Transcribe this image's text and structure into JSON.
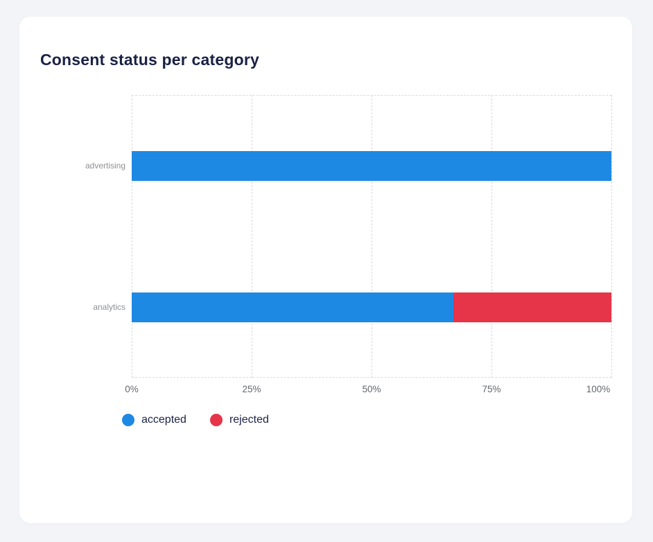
{
  "page": {
    "title": "Consent status per category"
  },
  "chart_data": {
    "type": "bar",
    "orientation": "horizontal",
    "stacked": true,
    "title": "Consent status per category",
    "categories": [
      "advertising",
      "analytics"
    ],
    "series": [
      {
        "name": "accepted",
        "color": "#1e89e3",
        "values": [
          100,
          67
        ]
      },
      {
        "name": "rejected",
        "color": "#e63449",
        "values": [
          0,
          33
        ]
      }
    ],
    "x_ticks": [
      "0%",
      "25%",
      "50%",
      "75%",
      "100%"
    ],
    "xlim": [
      0,
      100
    ],
    "grid": "dashed",
    "legend_position": "bottom-left"
  },
  "legend": {
    "items": [
      {
        "label": "accepted",
        "color": "#1e89e3"
      },
      {
        "label": "rejected",
        "color": "#e63449"
      }
    ]
  },
  "colors": {
    "accepted": "#1e89e3",
    "rejected": "#e63449",
    "title_text": "#1a2144",
    "tick_text": "#63676c",
    "category_text": "#8b9095",
    "gridline": "#d7d9dc",
    "card_bg": "#ffffff",
    "page_bg": "#f3f4f8"
  }
}
